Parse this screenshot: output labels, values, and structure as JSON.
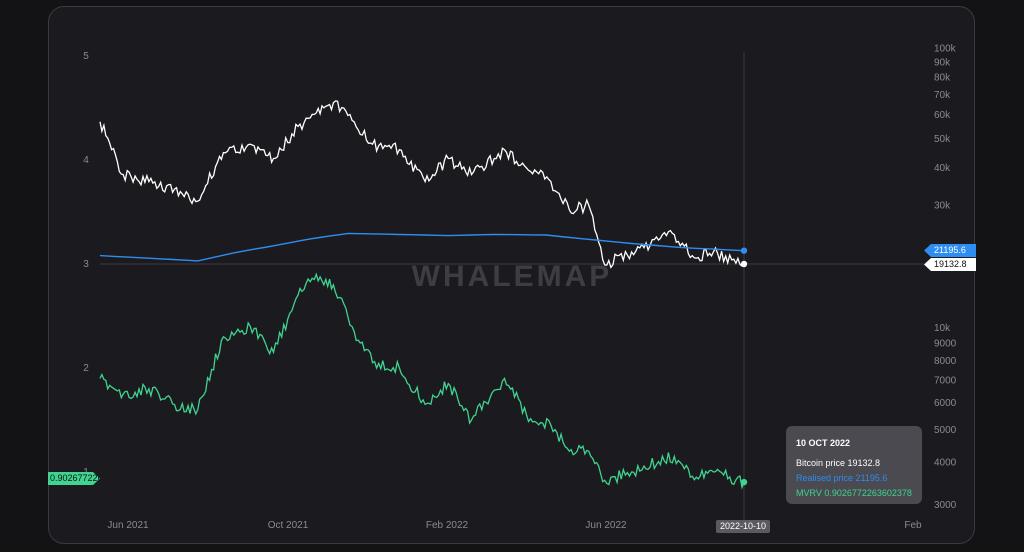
{
  "watermark": "WHALEMAP",
  "tooltip": {
    "date": "10 OCT 2022",
    "bitcoin_price_label": "Bitcoin price 19132.8",
    "realised_price_label": "Realised price 21195.6",
    "mvrv_label": "MVRV 0.9026772263602378"
  },
  "tags": {
    "realised_price": "21195.6",
    "bitcoin_price": "19132.8",
    "mvrv": "0.9026772263602378",
    "crosshair_date": "2022-10-10"
  },
  "colors": {
    "bitcoin_price": "#ffffff",
    "realised_price": "#2e8df0",
    "mvrv": "#3fd48f",
    "background": "#1b1b1f"
  },
  "chart_data": {
    "type": "line",
    "x_tick_labels": [
      "Jun 2021",
      "Oct 2021",
      "Feb 2022",
      "Jun 2022",
      "Feb"
    ],
    "left_axis": {
      "ticks": [
        1,
        2,
        3,
        4,
        5
      ],
      "series": "MVRV"
    },
    "right_axis_upper": {
      "scale": "log",
      "ticks": [
        "100k",
        "90k",
        "80k",
        "70k",
        "60k",
        "50k",
        "40k",
        "30k"
      ]
    },
    "right_axis_lower": {
      "scale": "log",
      "ticks": [
        "10k",
        "9000",
        "8000",
        "7000",
        "6000",
        "5000",
        "4000",
        "3000"
      ]
    },
    "series": [
      {
        "name": "Bitcoin price",
        "x": [
          "2021-05-01",
          "2021-05-20",
          "2021-06-10",
          "2021-07-01",
          "2021-07-20",
          "2021-08-10",
          "2021-09-01",
          "2021-09-20",
          "2021-10-10",
          "2021-10-25",
          "2021-11-08",
          "2021-11-25",
          "2021-12-10",
          "2022-01-01",
          "2022-01-22",
          "2022-02-10",
          "2022-03-01",
          "2022-03-28",
          "2022-04-15",
          "2022-05-05",
          "2022-05-20",
          "2022-06-05",
          "2022-06-18",
          "2022-07-10",
          "2022-08-01",
          "2022-08-14",
          "2022-09-01",
          "2022-09-15",
          "2022-10-10"
        ],
        "y": [
          57000,
          38000,
          36000,
          34000,
          31000,
          45000,
          48000,
          43000,
          55000,
          61000,
          66000,
          57000,
          48000,
          46000,
          36000,
          43000,
          38000,
          46000,
          40000,
          36000,
          29000,
          30000,
          19000,
          21000,
          23000,
          24000,
          20000,
          21000,
          19132.8
        ]
      },
      {
        "name": "Realised price",
        "x": [
          "2021-05-01",
          "2021-06-10",
          "2021-07-20",
          "2021-08-20",
          "2021-09-20",
          "2021-10-20",
          "2021-11-20",
          "2022-01-01",
          "2022-02-10",
          "2022-03-20",
          "2022-05-01",
          "2022-06-01",
          "2022-07-10",
          "2022-08-20",
          "2022-10-10"
        ],
        "y": [
          20400,
          20000,
          19600,
          20900,
          22000,
          23200,
          24200,
          24000,
          23800,
          24000,
          23900,
          23200,
          22400,
          21700,
          21195.6
        ]
      },
      {
        "name": "MVRV",
        "x": [
          "2021-05-01",
          "2021-05-20",
          "2021-06-10",
          "2021-07-01",
          "2021-07-20",
          "2021-08-10",
          "2021-09-01",
          "2021-09-20",
          "2021-10-10",
          "2021-10-25",
          "2021-11-08",
          "2021-11-25",
          "2021-12-10",
          "2022-01-01",
          "2022-01-22",
          "2022-02-10",
          "2022-03-01",
          "2022-03-28",
          "2022-04-15",
          "2022-05-05",
          "2022-05-20",
          "2022-06-05",
          "2022-06-18",
          "2022-07-10",
          "2022-08-01",
          "2022-08-14",
          "2022-09-01",
          "2022-09-15",
          "2022-10-10"
        ],
        "y": [
          1.9,
          1.75,
          1.8,
          1.65,
          1.6,
          2.3,
          2.4,
          2.15,
          2.7,
          2.9,
          2.8,
          2.35,
          2.05,
          2.0,
          1.65,
          1.85,
          1.5,
          1.9,
          1.55,
          1.45,
          1.2,
          1.2,
          0.92,
          1.0,
          1.1,
          1.15,
          0.95,
          1.0,
          0.9026772263602378
        ]
      }
    ]
  }
}
